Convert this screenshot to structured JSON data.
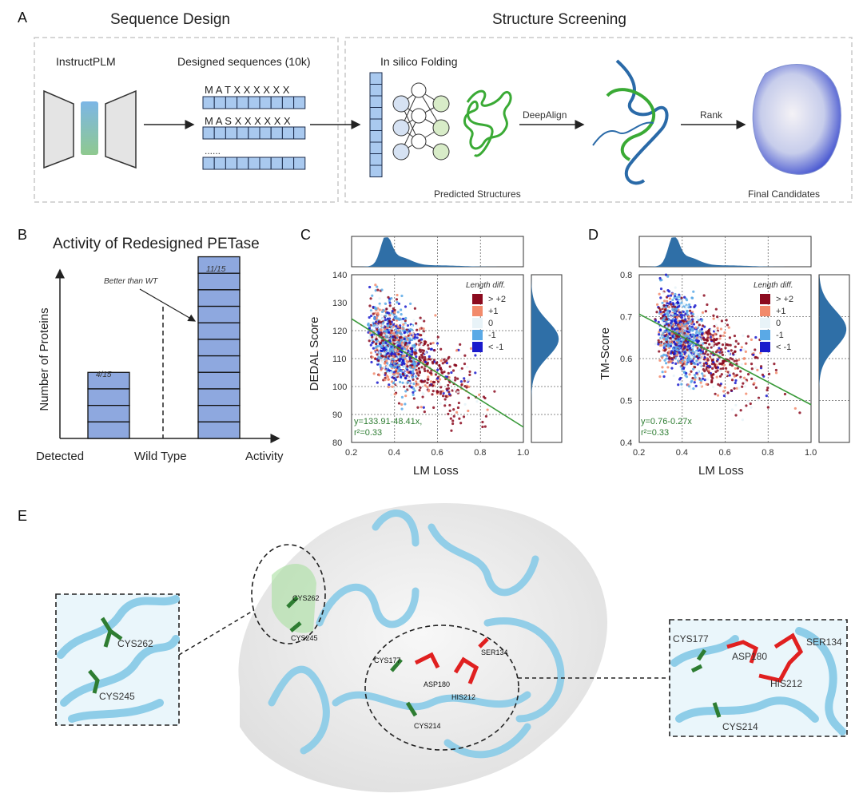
{
  "panels": {
    "a": "A",
    "b": "B",
    "c": "C",
    "d": "D",
    "e": "E"
  },
  "panel_a": {
    "seq_design_title": "Sequence Design",
    "structure_title": "Structure Screening",
    "model_label": "InstructPLM",
    "designed_label": "Designed sequences (10k)",
    "seq1": "M A T X X X X X X",
    "seq2": "M A S X X X X X X",
    "ellipsis": "......",
    "folding_label": "In silico Folding",
    "align_label": "DeepAlign",
    "rank_label": "Rank",
    "predicted_label": "Predicted Structures",
    "final_label": "Final Candidates"
  },
  "panel_b": {
    "title": "Activity of Redesigned PETase",
    "ylabel": "Number of Proteins",
    "x_labels": [
      "Detected",
      "Wild Type",
      "Activity"
    ],
    "annotation": "Better than WT",
    "bar1_label": "4/15",
    "bar2_label": "11/15",
    "bar1_value": 4,
    "bar2_value": 11,
    "total": 15
  },
  "panel_c": {
    "ylabel": "DEDAL Score",
    "xlabel": "LM Loss",
    "xticks": [
      "0.2",
      "0.4",
      "0.6",
      "0.8",
      "1.0"
    ],
    "yticks": [
      "80",
      "90",
      "100",
      "110",
      "120",
      "130",
      "140"
    ],
    "equation": "y=133.91-48.41x,",
    "r2": "r²=0.33"
  },
  "panel_d": {
    "ylabel": "TM-Score",
    "xlabel": "LM Loss",
    "xticks": [
      "0.2",
      "0.4",
      "0.6",
      "0.8",
      "1.0"
    ],
    "yticks": [
      "0.4",
      "0.5",
      "0.6",
      "0.7",
      "0.8"
    ],
    "equation": "y=0.76-0.27x",
    "r2": "r²=0.33"
  },
  "legend": {
    "title": "Length diff.",
    "items": [
      {
        "label": "> +2",
        "color": "#8b0a1e"
      },
      {
        "label": "+1",
        "color": "#f28a6b"
      },
      {
        "label": "0",
        "color": "#e8f3f8"
      },
      {
        "label": "-1",
        "color": "#5aa9e6"
      },
      {
        "label": "< -1",
        "color": "#1a1acc"
      }
    ]
  },
  "panel_e": {
    "residues": {
      "cys262": "CYS262",
      "cys245": "CYS245",
      "cys177": "CYS177",
      "ser134": "SER134",
      "asp180": "ASP180",
      "his212": "HIS212",
      "cys214": "CYS214"
    }
  },
  "colors": {
    "bar_fill": "#8ea8df",
    "seq_fill": "#a9c9ef",
    "hist_fill": "#2f6fa7",
    "fit_line": "#3a9a3a",
    "protein": "#8ecde8",
    "green_res": "#2e7d32",
    "red_res": "#e02020"
  },
  "chart_data": [
    {
      "type": "scatter",
      "xlabel": "LM Loss",
      "ylabel": "DEDAL Score",
      "xlim": [
        0.2,
        1.0
      ],
      "ylim": [
        80,
        140
      ],
      "fit": {
        "intercept": 133.91,
        "slope": -48.41,
        "r2": 0.33
      },
      "series": [
        {
          "name": "Length diff.",
          "values": []
        }
      ]
    },
    {
      "type": "scatter",
      "xlabel": "LM Loss",
      "ylabel": "TM-Score",
      "xlim": [
        0.2,
        1.0
      ],
      "ylim": [
        0.4,
        0.8
      ],
      "fit": {
        "intercept": 0.76,
        "slope": -0.27,
        "r2": 0.33
      },
      "series": [
        {
          "name": "Length diff.",
          "values": []
        }
      ]
    },
    {
      "type": "bar",
      "title": "Activity of Redesigned PETase",
      "categories": [
        "Detected",
        "Activity"
      ],
      "values": [
        4,
        11
      ],
      "ylabel": "Number of Proteins"
    }
  ]
}
